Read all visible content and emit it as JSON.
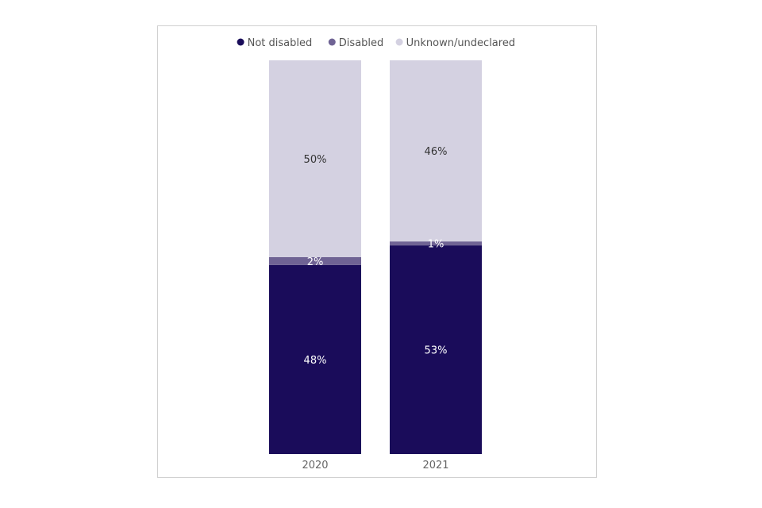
{
  "chart_data": {
    "type": "bar",
    "stacked": true,
    "orientation": "vertical",
    "categories": [
      "2020",
      "2021"
    ],
    "series": [
      {
        "name": "Not disabled",
        "values": [
          48,
          53
        ],
        "labels": [
          "48%",
          "53%"
        ],
        "color": "#1a0c5a",
        "label_color": "#ffffff"
      },
      {
        "name": "Disabled",
        "values": [
          2,
          1
        ],
        "labels": [
          "2%",
          "1%"
        ],
        "color": "#6f6394",
        "label_color": "#ffffff"
      },
      {
        "name": "Unknown/undeclared",
        "values": [
          50,
          46
        ],
        "labels": [
          "50%",
          "46%"
        ],
        "color": "#d4d1e1",
        "label_color": "#333333"
      }
    ],
    "ylim": [
      0,
      100
    ],
    "grid": false,
    "legend_position": "top"
  }
}
